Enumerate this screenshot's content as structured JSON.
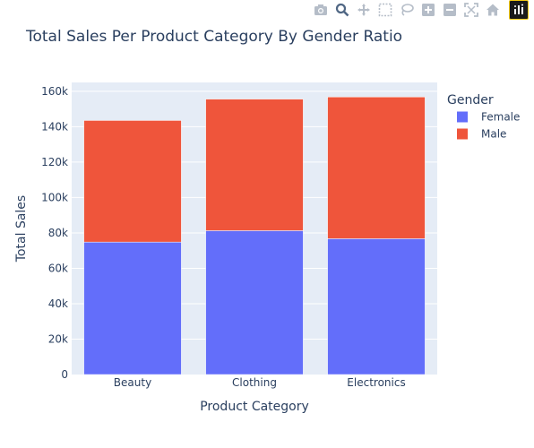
{
  "toolbar": {
    "icons": [
      "camera-icon",
      "zoom-icon",
      "pan-icon",
      "box-select-icon",
      "lasso-select-icon",
      "zoom-in-icon",
      "zoom-out-icon",
      "autoscale-icon",
      "reset-axes-icon",
      "plotly-logo-icon"
    ]
  },
  "chart_data": {
    "type": "bar",
    "barmode": "stack",
    "title": "Total Sales Per Product Category By Gender Ratio",
    "xlabel": "Product Category",
    "ylabel": "Total Sales",
    "categories": [
      "Beauty",
      "Clothing",
      "Electronics"
    ],
    "series": [
      {
        "name": "Female",
        "color": "#636efa",
        "values": [
          74830,
          81275,
          76735
        ]
      },
      {
        "name": "Male",
        "color": "#ef553b",
        "values": [
          68685,
          74305,
          80045
        ]
      }
    ],
    "ylim": [
      0,
      165000
    ],
    "yticks": [
      0,
      20000,
      40000,
      60000,
      80000,
      100000,
      120000,
      140000,
      160000
    ],
    "ytick_labels": [
      "0",
      "20k",
      "40k",
      "60k",
      "80k",
      "100k",
      "120k",
      "140k",
      "160k"
    ],
    "legend_title": "Gender",
    "legend_position": "right",
    "grid": true,
    "plot_bg": "#e5ecf6"
  }
}
